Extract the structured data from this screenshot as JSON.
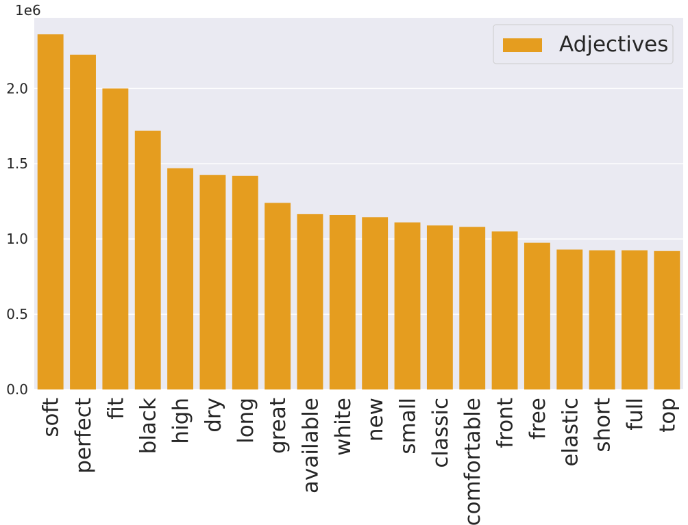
{
  "chart_data": {
    "type": "bar",
    "categories": [
      "soft",
      "perfect",
      "fit",
      "black",
      "high",
      "dry",
      "long",
      "great",
      "available",
      "white",
      "new",
      "small",
      "classic",
      "comfortable",
      "front",
      "free",
      "elastic",
      "short",
      "full",
      "top"
    ],
    "series": [
      {
        "name": "Adjectives",
        "values": [
          2360000,
          2225000,
          2000000,
          1720000,
          1470000,
          1425000,
          1420000,
          1240000,
          1165000,
          1160000,
          1145000,
          1110000,
          1090000,
          1080000,
          1050000,
          975000,
          930000,
          925000,
          925000,
          920000
        ]
      }
    ],
    "title": "",
    "xlabel": "",
    "ylabel": "",
    "ylim": [
      0,
      2470000
    ],
    "yticks": [
      0,
      0.5,
      1.0,
      1.5,
      2.0
    ],
    "ytick_labels": [
      "0.0",
      "0.5",
      "1.0",
      "1.5",
      "2.0"
    ],
    "y_offset_label": "1e6",
    "grid": true,
    "legend_position": "top-right",
    "bar_color": "#e59d1f",
    "background_color": "#eaeaf2"
  }
}
